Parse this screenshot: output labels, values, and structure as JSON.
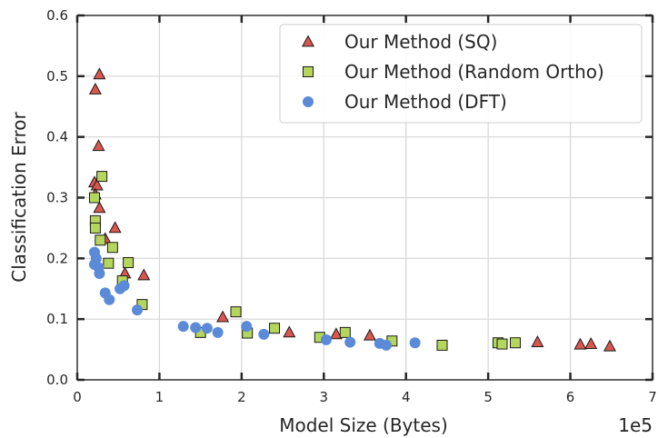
{
  "chart_data": {
    "type": "scatter",
    "title": "",
    "xlabel": "Model Size (Bytes)",
    "ylabel": "Classification Error",
    "x_offset_label": "1e5",
    "xlim": [
      0,
      7
    ],
    "ylim": [
      0,
      0.6
    ],
    "x_ticks": [
      "0",
      "1",
      "2",
      "3",
      "4",
      "5",
      "6",
      "7"
    ],
    "y_ticks": [
      "0.0",
      "0.1",
      "0.2",
      "0.3",
      "0.4",
      "0.5",
      "0.6"
    ],
    "grid": true,
    "legend_position": "top-right",
    "series": [
      {
        "name": "Our Method (SQ)",
        "marker": "triangle",
        "color": "#d9574f",
        "points": [
          [
            0.22,
            0.478
          ],
          [
            0.27,
            0.503
          ],
          [
            0.26,
            0.385
          ],
          [
            0.21,
            0.325
          ],
          [
            0.24,
            0.32
          ],
          [
            0.22,
            0.305
          ],
          [
            0.27,
            0.283
          ],
          [
            0.34,
            0.232
          ],
          [
            0.46,
            0.25
          ],
          [
            0.58,
            0.175
          ],
          [
            0.81,
            0.172
          ],
          [
            1.77,
            0.103
          ],
          [
            2.58,
            0.078
          ],
          [
            3.15,
            0.075
          ],
          [
            3.56,
            0.073
          ],
          [
            5.6,
            0.062
          ],
          [
            6.12,
            0.058
          ],
          [
            6.25,
            0.059
          ],
          [
            6.48,
            0.055
          ]
        ]
      },
      {
        "name": "Our Method (Random Ortho)",
        "marker": "square",
        "color": "#b5d65c",
        "points": [
          [
            0.3,
            0.335
          ],
          [
            0.21,
            0.3
          ],
          [
            0.22,
            0.262
          ],
          [
            0.22,
            0.25
          ],
          [
            0.28,
            0.23
          ],
          [
            0.43,
            0.218
          ],
          [
            0.38,
            0.192
          ],
          [
            0.62,
            0.193
          ],
          [
            0.55,
            0.163
          ],
          [
            0.79,
            0.124
          ],
          [
            1.93,
            0.112
          ],
          [
            1.5,
            0.078
          ],
          [
            2.07,
            0.077
          ],
          [
            2.4,
            0.085
          ],
          [
            2.95,
            0.07
          ],
          [
            3.26,
            0.078
          ],
          [
            3.83,
            0.064
          ],
          [
            4.44,
            0.057
          ],
          [
            5.12,
            0.061
          ],
          [
            5.17,
            0.059
          ],
          [
            5.33,
            0.061
          ]
        ]
      },
      {
        "name": "Our Method (DFT)",
        "marker": "circle",
        "color": "#5a8ad8",
        "points": [
          [
            0.21,
            0.21
          ],
          [
            0.23,
            0.2
          ],
          [
            0.21,
            0.19
          ],
          [
            0.26,
            0.185
          ],
          [
            0.27,
            0.175
          ],
          [
            0.34,
            0.143
          ],
          [
            0.39,
            0.132
          ],
          [
            0.52,
            0.15
          ],
          [
            0.57,
            0.155
          ],
          [
            0.73,
            0.115
          ],
          [
            1.29,
            0.088
          ],
          [
            1.44,
            0.086
          ],
          [
            1.58,
            0.085
          ],
          [
            1.71,
            0.078
          ],
          [
            2.06,
            0.088
          ],
          [
            2.27,
            0.075
          ],
          [
            3.03,
            0.066
          ],
          [
            3.32,
            0.062
          ],
          [
            3.68,
            0.06
          ],
          [
            3.76,
            0.057
          ],
          [
            4.11,
            0.061
          ]
        ]
      }
    ]
  }
}
